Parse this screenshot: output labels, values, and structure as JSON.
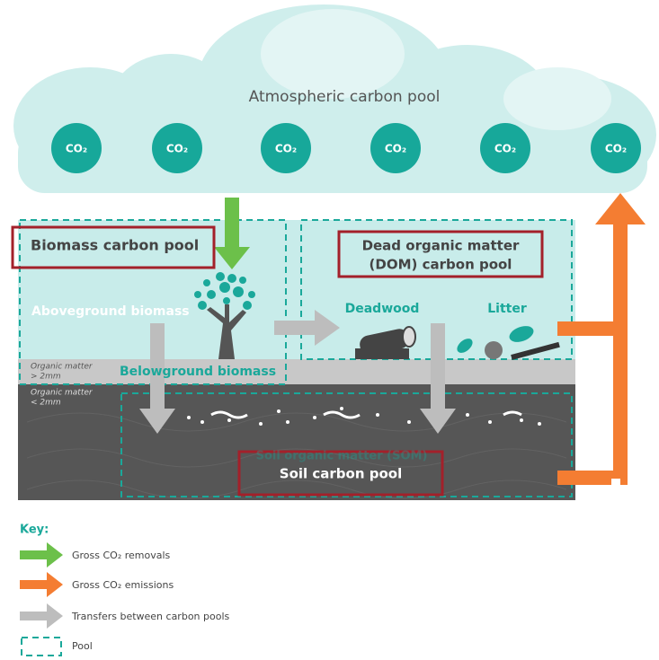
{
  "atmosphere": {
    "title": "Atmospheric carbon pool",
    "molecules": [
      "CO₂",
      "CO₂",
      "CO₂",
      "CO₂",
      "CO₂",
      "CO₂"
    ]
  },
  "biomass": {
    "title": "Biomass carbon pool",
    "aboveground": "Aboveground biomass",
    "belowground": "Belowground biomass"
  },
  "dom": {
    "title_lines": [
      "Dead organic matter",
      "(DOM) carbon pool"
    ],
    "deadwood": "Deadwood",
    "litter": "Litter"
  },
  "layers": {
    "coarse": [
      "Organic matter",
      "> 2mm"
    ],
    "fine": [
      "Organic matter",
      "< 2mm"
    ]
  },
  "soil": {
    "subtitle": "Soil organic matter (SOM)",
    "title": "Soil carbon pool"
  },
  "key": {
    "title": "Key:",
    "items": [
      "Gross CO₂ removals",
      "Gross CO₂ emissions",
      "Transfers between carbon pools",
      "Pool"
    ]
  }
}
